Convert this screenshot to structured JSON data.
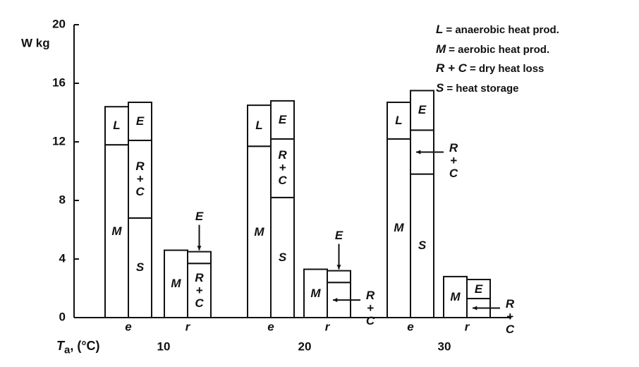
{
  "chart_data": {
    "type": "stacked-pair-bar",
    "y_label": "W kg",
    "x_label": "T",
    "x_label_sub": "a",
    "x_label_rest": ", (°C)",
    "groups": [
      "10",
      "20",
      "30"
    ],
    "categories": [
      "e",
      "r",
      "e",
      "r",
      "e",
      "r"
    ],
    "ylim": [
      0,
      20
    ],
    "yticks": [
      0,
      4,
      8,
      12,
      16,
      20
    ],
    "color": "#ffffff",
    "edge_color": "#111111",
    "series": [
      {
        "name": "M",
        "legend_text": "= aerobic heat prod.",
        "stack": "production",
        "values": [
          11.8,
          4.6,
          11.7,
          3.3,
          12.2,
          2.8
        ]
      },
      {
        "name": "L",
        "legend_text": "= anaerobic heat prod.",
        "stack": "production",
        "values": [
          2.6,
          null,
          2.8,
          null,
          2.5,
          null
        ]
      },
      {
        "name": "S",
        "legend_text": "= heat storage",
        "stack": "loss",
        "values": [
          6.8,
          null,
          8.2,
          null,
          9.8,
          null
        ]
      },
      {
        "name": "R + C",
        "legend_text": "= dry heat loss",
        "stack": "loss",
        "values": [
          5.3,
          3.7,
          4.0,
          2.4,
          3.0,
          1.3
        ]
      },
      {
        "name": "E",
        "stack": "loss",
        "values": [
          2.6,
          0.8,
          2.6,
          0.8,
          2.7,
          1.3
        ]
      }
    ],
    "legend_order": [
      1,
      0,
      3,
      2
    ]
  }
}
